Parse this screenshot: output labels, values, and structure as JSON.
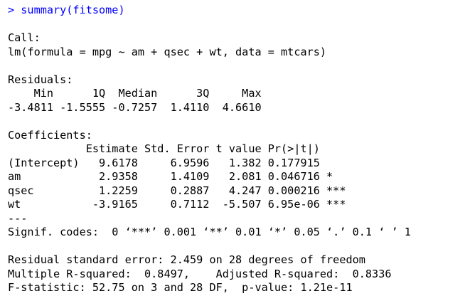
{
  "console": {
    "command_line": "> summary(fitsome)",
    "lines": [
      "",
      "Call:",
      "lm(formula = mpg ~ am + qsec + wt, data = mtcars)",
      "",
      "Residuals:",
      "    Min      1Q  Median      3Q     Max ",
      "-3.4811 -1.5555 -0.7257  1.4110  4.6610 ",
      "",
      "Coefficients:",
      "            Estimate Std. Error t value Pr(>|t|)    ",
      "(Intercept)   9.6178     6.9596   1.382 0.177915    ",
      "am            2.9358     1.4109   2.081 0.046716 *  ",
      "qsec          1.2259     0.2887   4.247 0.000216 ***",
      "wt           -3.9165     0.7112  -5.507 6.95e-06 ***",
      "---",
      "Signif. codes:  0 ‘***’ 0.001 ‘**’ 0.01 ‘*’ 0.05 ‘.’ 0.1 ‘ ’ 1",
      "",
      "Residual standard error: 2.459 on 28 degrees of freedom",
      "Multiple R-squared:  0.8497,\tAdjusted R-squared:  0.8336 ",
      "F-statistic: 52.75 on 3 and 28 DF,  p-value: 1.21e-11"
    ]
  },
  "colors": {
    "command": "#0000ff",
    "output": "#000000",
    "background": "#ffffff"
  }
}
